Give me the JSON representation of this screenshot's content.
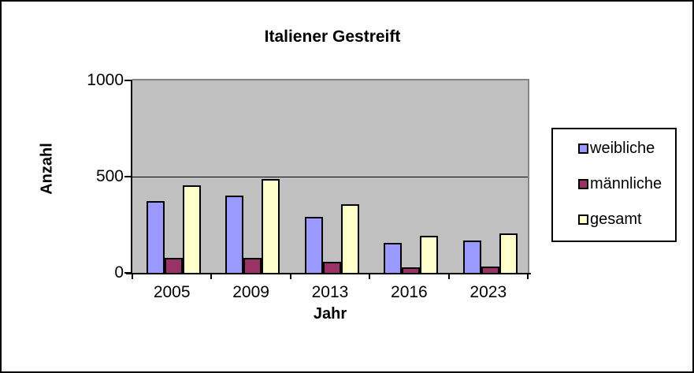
{
  "window": {
    "background_color": "#FFFFFF",
    "border_color": "#000000"
  },
  "chart_data": {
    "type": "bar",
    "title": "Italiener Gestreift",
    "xlabel": "Jahr",
    "ylabel": "Anzahl",
    "categories": [
      "2005",
      "2009",
      "2013",
      "2016",
      "2023"
    ],
    "series": [
      {
        "name": "weibliche",
        "color": "#9999FF",
        "values": [
          380,
          410,
          300,
          165,
          175
        ]
      },
      {
        "name": "männliche",
        "color": "#993366",
        "values": [
          85,
          85,
          65,
          35,
          40
        ]
      },
      {
        "name": "gesamt",
        "color": "#FFFFCC",
        "values": [
          465,
          495,
          365,
          200,
          215
        ]
      }
    ],
    "ylim": [
      0,
      1000
    ],
    "yticks": [
      0,
      500,
      1000
    ],
    "grid": true,
    "legend_position": "right",
    "plot_background": "#C0C0C0",
    "plot_border_color": "#848484",
    "bar_border_color": "#000000",
    "axis_color": "#000000"
  }
}
